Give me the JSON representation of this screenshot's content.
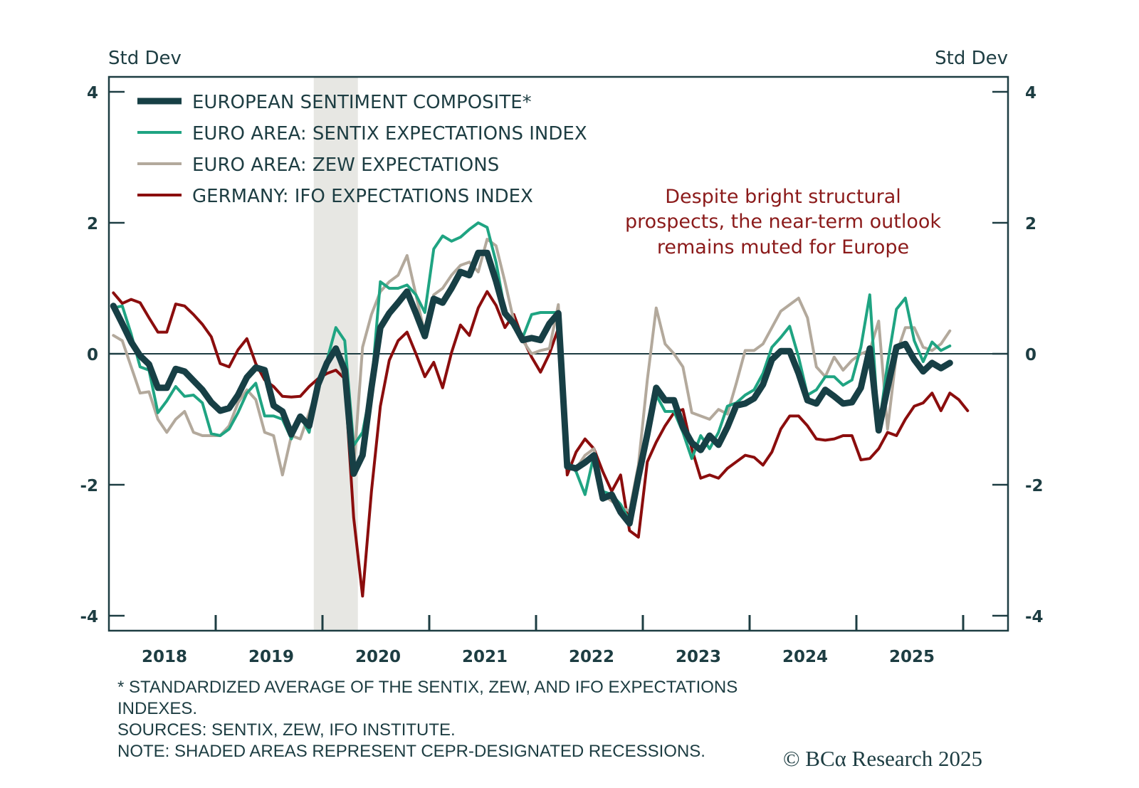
{
  "chart_data": {
    "type": "line",
    "title": "",
    "ylabel_left": "Std Dev",
    "ylabel_right": "Std Dev",
    "xlabel": "",
    "ylim": [
      -4,
      4
    ],
    "yticks": [
      4,
      2,
      0,
      -2,
      -4
    ],
    "ytick_labels": [
      "4",
      "2",
      "0",
      "-2",
      "-4"
    ],
    "xlim": [
      "2017-12",
      "2026-05"
    ],
    "xtick_labels": [
      "2018",
      "2019",
      "2020",
      "2021",
      "2022",
      "2023",
      "2024",
      "2025"
    ],
    "x_start": "2018-01",
    "x_frequency": "monthly",
    "grid": false,
    "zero_line": true,
    "legend_position": "top-left",
    "recession_shading": [
      {
        "start": "2019-12",
        "end": "2020-04"
      }
    ],
    "series": [
      {
        "name": "EUROPEAN SENTIMENT COMPOSITE*",
        "color": "#173f45",
        "values": [
          0.73,
          0.46,
          0.18,
          -0.03,
          -0.16,
          -0.52,
          -0.52,
          -0.23,
          -0.27,
          -0.41,
          -0.55,
          -0.74,
          -0.87,
          -0.83,
          -0.63,
          -0.36,
          -0.21,
          -0.25,
          -0.79,
          -0.88,
          -1.23,
          -0.96,
          -1.1,
          -0.47,
          -0.14,
          0.08,
          -0.25,
          -1.83,
          -1.55,
          -0.52,
          0.4,
          0.62,
          0.78,
          0.95,
          0.62,
          0.27,
          0.84,
          0.78,
          1.0,
          1.25,
          1.2,
          1.54,
          1.54,
          1.11,
          0.62,
          0.46,
          0.21,
          0.24,
          0.21,
          0.46,
          0.62,
          -1.72,
          -1.75,
          -1.66,
          -1.55,
          -2.21,
          -2.15,
          -2.42,
          -2.59,
          -1.88,
          -1.23,
          -0.52,
          -0.71,
          -0.71,
          -1.12,
          -1.36,
          -1.47,
          -1.25,
          -1.39,
          -1.12,
          -0.79,
          -0.76,
          -0.68,
          -0.47,
          -0.09,
          0.04,
          0.04,
          -0.3,
          -0.71,
          -0.76,
          -0.55,
          -0.65,
          -0.76,
          -0.74,
          -0.52,
          0.08,
          -1.17,
          -0.52,
          0.1,
          0.15,
          -0.09,
          -0.27,
          -0.14,
          -0.22,
          -0.14
        ]
      },
      {
        "name": "EURO AREA: SENTIX EXPECTATIONS INDEX",
        "color": "#1fa482",
        "values": [
          0.7,
          0.73,
          0.3,
          -0.2,
          -0.25,
          -0.9,
          -0.72,
          -0.5,
          -0.65,
          -0.63,
          -0.75,
          -1.22,
          -1.25,
          -1.15,
          -0.9,
          -0.6,
          -0.45,
          -0.95,
          -0.95,
          -1.0,
          -1.3,
          -0.95,
          -1.2,
          -0.45,
          -0.1,
          0.4,
          0.2,
          -1.4,
          -1.2,
          -0.5,
          1.1,
          1.0,
          1.0,
          1.05,
          0.9,
          0.63,
          1.6,
          1.8,
          1.72,
          1.78,
          1.9,
          2.0,
          1.93,
          1.4,
          0.65,
          0.4,
          0.25,
          0.6,
          0.63,
          0.63,
          0.63,
          -1.65,
          -1.8,
          -2.15,
          -1.55,
          -2.1,
          -2.15,
          -2.3,
          -2.55,
          -1.9,
          -1.25,
          -0.63,
          -0.88,
          -0.88,
          -1.2,
          -1.6,
          -1.25,
          -1.45,
          -1.2,
          -0.8,
          -0.75,
          -0.63,
          -0.55,
          -0.3,
          0.1,
          0.25,
          0.42,
          -0.05,
          -0.63,
          -0.55,
          -0.35,
          -0.35,
          -0.48,
          -0.4,
          0.1,
          0.9,
          -1.15,
          -0.15,
          0.68,
          0.85,
          0.2,
          -0.12,
          0.18,
          0.05,
          0.12
        ]
      },
      {
        "name": "EURO AREA: ZEW EXPECTATIONS",
        "color": "#b3a99c",
        "values": [
          0.28,
          0.2,
          -0.2,
          -0.6,
          -0.58,
          -1.0,
          -1.2,
          -1.0,
          -0.88,
          -1.2,
          -1.25,
          -1.25,
          -1.25,
          -1.1,
          -0.75,
          -0.55,
          -0.7,
          -1.2,
          -1.25,
          -1.85,
          -1.25,
          -1.3,
          -0.9,
          -0.5,
          -0.15,
          0.05,
          -0.4,
          -1.75,
          0.1,
          0.6,
          0.95,
          1.1,
          1.2,
          1.5,
          0.9,
          0.3,
          0.9,
          1.0,
          1.2,
          1.35,
          1.4,
          1.25,
          1.75,
          1.65,
          1.1,
          0.5,
          0.2,
          0.0,
          0.05,
          0.08,
          0.75,
          -1.7,
          -1.75,
          -1.55,
          -1.45,
          -2.15,
          -2.25,
          -2.35,
          -2.4,
          -1.7,
          -0.4,
          0.7,
          0.15,
          0.0,
          -0.2,
          -0.9,
          -0.95,
          -1.0,
          -0.85,
          -0.92,
          -0.45,
          0.05,
          0.05,
          0.15,
          0.4,
          0.65,
          0.75,
          0.85,
          0.55,
          -0.2,
          -0.35,
          -0.05,
          -0.25,
          -0.1,
          0.0,
          0.05,
          0.5,
          -1.15,
          0.0,
          0.4,
          0.4,
          0.1,
          0.05,
          0.15,
          0.35
        ]
      },
      {
        "name": "GERMANY: IFO EXPECTATIONS INDEX",
        "color": "#8b0d0d",
        "values": [
          0.93,
          0.77,
          0.83,
          0.78,
          0.55,
          0.33,
          0.33,
          0.76,
          0.73,
          0.6,
          0.45,
          0.26,
          -0.15,
          -0.2,
          0.06,
          0.23,
          -0.15,
          -0.4,
          -0.5,
          -0.65,
          -0.66,
          -0.65,
          -0.5,
          -0.38,
          -0.3,
          -0.25,
          -0.38,
          -2.5,
          -3.7,
          -2.1,
          -0.8,
          -0.1,
          0.2,
          0.33,
          0.0,
          -0.35,
          -0.13,
          -0.52,
          0.02,
          0.44,
          0.28,
          0.7,
          0.95,
          0.74,
          0.4,
          0.6,
          0.23,
          -0.05,
          -0.28,
          0.0,
          0.39,
          -1.85,
          -1.5,
          -1.3,
          -1.45,
          -1.8,
          -2.1,
          -1.85,
          -2.7,
          -2.8,
          -1.65,
          -1.35,
          -1.1,
          -0.9,
          -0.85,
          -1.45,
          -1.9,
          -1.85,
          -1.9,
          -1.75,
          -1.65,
          -1.55,
          -1.58,
          -1.7,
          -1.5,
          -1.15,
          -0.95,
          -0.95,
          -1.1,
          -1.3,
          -1.32,
          -1.3,
          -1.25,
          -1.25,
          -1.62,
          -1.6,
          -1.45,
          -1.2,
          -1.25,
          -1.0,
          -0.8,
          -0.75,
          -0.6,
          -0.87,
          -0.6,
          -0.7,
          -0.87
        ]
      }
    ],
    "annotations": [
      "Despite bright structural",
      "prospects, the near-term outlook",
      "remains muted for Europe"
    ]
  },
  "footnotes": {
    "line1": "* STANDARDIZED AVERAGE OF THE SENTIX, ZEW, AND IFO EXPECTATIONS",
    "line2": "INDEXES.",
    "line3": "SOURCES: SENTIX, ZEW, IFO INSTITUTE.",
    "line4": "NOTE: SHADED AREAS REPRESENT CEPR-DESIGNATED RECESSIONS."
  },
  "logo": {
    "text": "© BCα Research 2025"
  },
  "colors": {
    "axis": "#1d3d42",
    "shade": "#e7e7e3",
    "annotation": "#8b1a1a"
  }
}
